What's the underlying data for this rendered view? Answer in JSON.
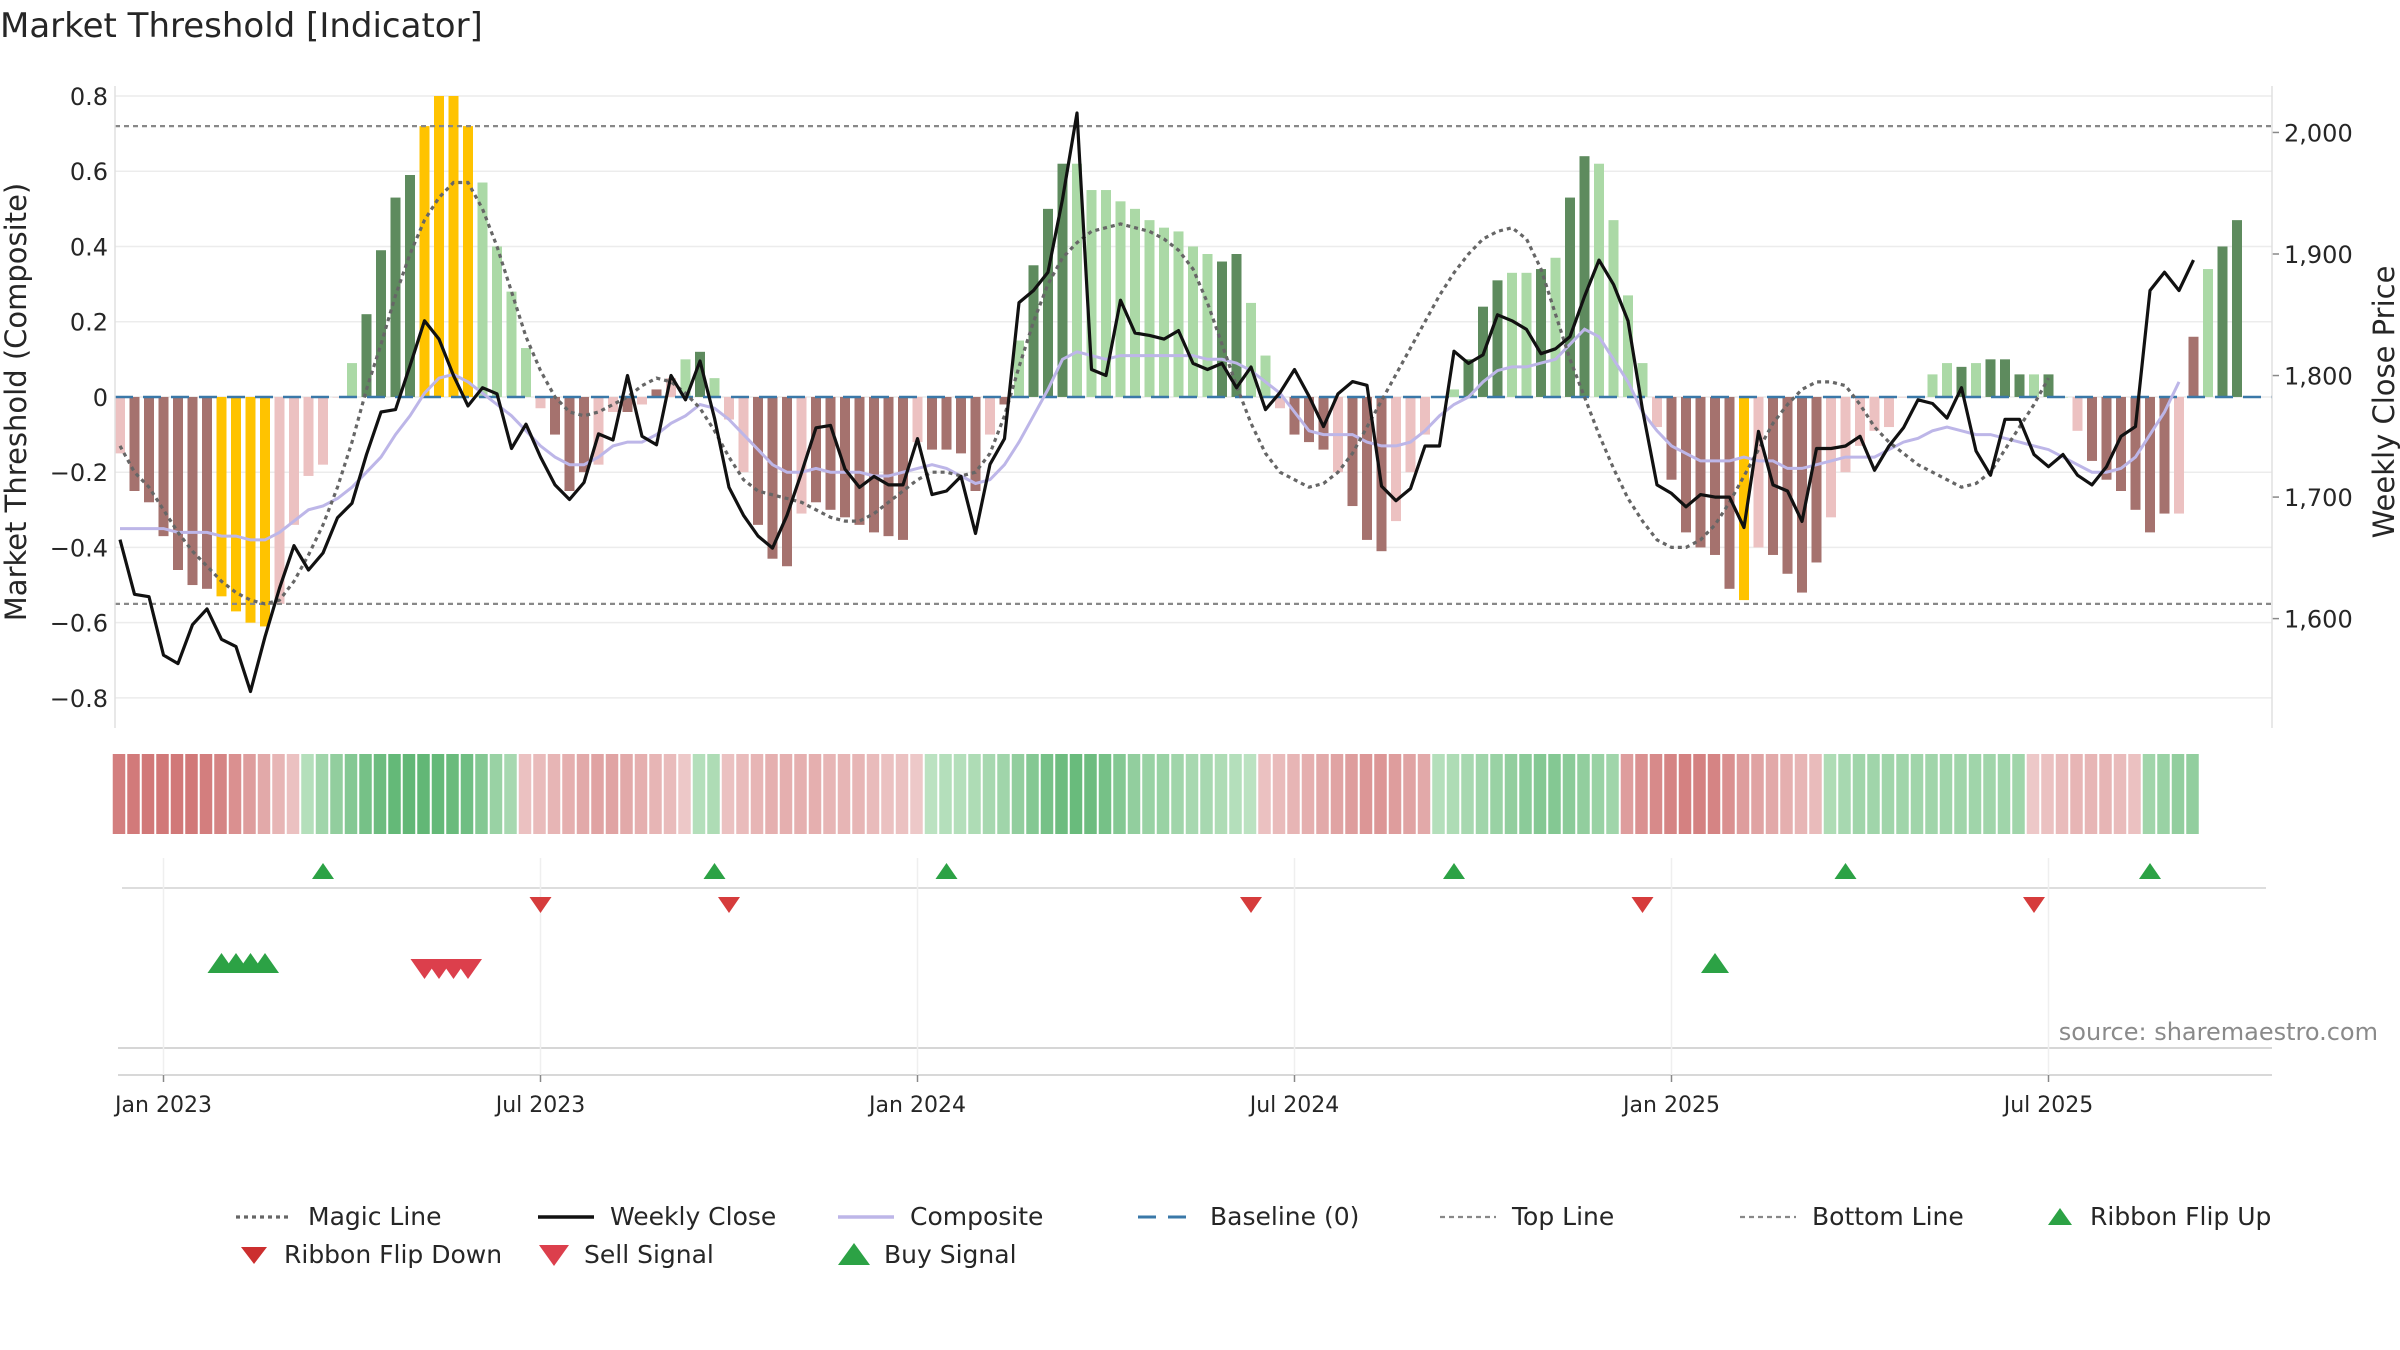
{
  "title": "Market Threshold [Indicator]",
  "source": "source: sharemaestro.com",
  "colors": {
    "strong_green": "#5e8b5e",
    "light_green": "#abd9a6",
    "strong_red": "#a5726e",
    "light_red": "#ecc1c1",
    "gold": "#ffc300",
    "weekly_close": "#111111",
    "composite": "#bdb6e8",
    "magic_line": "#666666",
    "baseline": "#3a78a8",
    "buy": "#2ca245",
    "sell": "#d63c3c"
  },
  "chart_data": {
    "type": "bar",
    "title": "Market Threshold [Indicator]",
    "ylabel": "Market Threshold (Composite)",
    "y2label": "Weekly Close Price",
    "ylim": [
      -0.88,
      0.8
    ],
    "y2lim": [
      1510,
      2030
    ],
    "yticks": [
      {
        "v": 0.8,
        "label": "0.8"
      },
      {
        "v": 0.6,
        "label": "0.6"
      },
      {
        "v": 0.4,
        "label": "0.4"
      },
      {
        "v": 0.2,
        "label": "0.2"
      },
      {
        "v": 0,
        "label": "0"
      },
      {
        "v": -0.2,
        "label": "−0.2"
      },
      {
        "v": -0.4,
        "label": "−0.4"
      },
      {
        "v": -0.6,
        "label": "−0.6"
      },
      {
        "v": -0.8,
        "label": "−0.8"
      }
    ],
    "y2ticks": [
      {
        "v": 2000,
        "label": "2,000"
      },
      {
        "v": 1900,
        "label": "1,900"
      },
      {
        "v": 1800,
        "label": "1,800"
      },
      {
        "v": 1700,
        "label": "1,700"
      },
      {
        "v": 1600,
        "label": "1,600"
      }
    ],
    "xticks": [
      {
        "week": 3,
        "label": "Jan 2023"
      },
      {
        "week": 29,
        "label": "Jul 2023"
      },
      {
        "week": 55,
        "label": "Jan 2024"
      },
      {
        "week": 81,
        "label": "Jul 2024"
      },
      {
        "week": 107,
        "label": "Jan 2025"
      },
      {
        "week": 133,
        "label": "Jul 2025"
      }
    ],
    "top_line": 0.72,
    "bottom_line": -0.55,
    "histogram": [
      -0.15,
      -0.25,
      -0.28,
      -0.37,
      -0.46,
      -0.5,
      -0.51,
      -0.53,
      -0.57,
      -0.6,
      -0.61,
      -0.55,
      -0.34,
      -0.21,
      -0.18,
      0,
      0.09,
      0.22,
      0.39,
      0.53,
      0.59,
      0.72,
      0.8,
      0.8,
      0.72,
      0.57,
      0.4,
      0.28,
      0.13,
      -0.03,
      -0.1,
      -0.25,
      -0.2,
      -0.18,
      -0.04,
      -0.04,
      -0.02,
      0.02,
      0.05,
      0.1,
      0.12,
      0.05,
      -0.06,
      -0.2,
      -0.34,
      -0.43,
      -0.45,
      -0.31,
      -0.28,
      -0.3,
      -0.32,
      -0.34,
      -0.36,
      -0.37,
      -0.38,
      -0.12,
      -0.14,
      -0.14,
      -0.15,
      -0.25,
      -0.1,
      -0.02,
      0.15,
      0.35,
      0.5,
      0.62,
      0.62,
      0.55,
      0.55,
      0.52,
      0.5,
      0.47,
      0.45,
      0.44,
      0.4,
      0.38,
      0.36,
      0.38,
      0.25,
      0.11,
      -0.03,
      -0.1,
      -0.12,
      -0.14,
      -0.2,
      -0.29,
      -0.38,
      -0.41,
      -0.33,
      -0.2,
      -0.1,
      0,
      0.02,
      0.1,
      0.24,
      0.31,
      0.33,
      0.33,
      0.34,
      0.37,
      0.53,
      0.64,
      0.62,
      0.47,
      0.27,
      0.09,
      -0.08,
      -0.22,
      -0.36,
      -0.4,
      -0.42,
      -0.51,
      -0.54,
      -0.4,
      -0.42,
      -0.47,
      -0.52,
      -0.44,
      -0.32,
      -0.2,
      -0.13,
      -0.09,
      -0.08,
      0,
      0,
      0.06,
      0.09,
      0.08,
      0.09,
      0.1,
      0.1,
      0.06,
      0.06,
      0.06,
      0,
      -0.09,
      -0.17,
      -0.22,
      -0.25,
      -0.3,
      -0.36,
      -0.31,
      -0.31,
      0.16,
      0.34,
      0.4,
      0.47
    ],
    "histogram_colors": [
      "lr",
      "sr",
      "sr",
      "sr",
      "sr",
      "sr",
      "sr",
      "g",
      "g",
      "g",
      "g",
      "lr",
      "lr",
      "lr",
      "lr",
      "lr",
      "lg",
      "sg",
      "sg",
      "sg",
      "sg",
      "g",
      "g",
      "g",
      "g",
      "lg",
      "lg",
      "lg",
      "lg",
      "lr",
      "sr",
      "sr",
      "sr",
      "lr",
      "lr",
      "sr",
      "lr",
      "sr",
      "lr",
      "lg",
      "sg",
      "lg",
      "lr",
      "lr",
      "sr",
      "sr",
      "sr",
      "lr",
      "sr",
      "sr",
      "sr",
      "sr",
      "sr",
      "sr",
      "sr",
      "lr",
      "sr",
      "sr",
      "sr",
      "sr",
      "lr",
      "sr",
      "lg",
      "sg",
      "sg",
      "sg",
      "lg",
      "lg",
      "lg",
      "lg",
      "lg",
      "lg",
      "lg",
      "lg",
      "lg",
      "lg",
      "sg",
      "sg",
      "lg",
      "lg",
      "lr",
      "sr",
      "sr",
      "sr",
      "lr",
      "sr",
      "sr",
      "sr",
      "lr",
      "lr",
      "lr",
      "sr",
      "lg",
      "sg",
      "sg",
      "sg",
      "lg",
      "lg",
      "sg",
      "lg",
      "sg",
      "sg",
      "lg",
      "lg",
      "lg",
      "lg",
      "lr",
      "sr",
      "sr",
      "sr",
      "sr",
      "sr",
      "g",
      "lr",
      "sr",
      "sr",
      "sr",
      "sr",
      "lr",
      "lr",
      "lr",
      "lr",
      "lr",
      "lr",
      "lr",
      "lg",
      "lg",
      "sg",
      "lg",
      "sg",
      "sg",
      "sg",
      "lg",
      "sg",
      "lg",
      "lr",
      "sr",
      "sr",
      "sr",
      "sr",
      "sr",
      "sr",
      "lr",
      "sr",
      "lg",
      "sg",
      "sg",
      "sg"
    ],
    "weekly_close": [
      1665,
      1620,
      1618,
      1570,
      1563,
      1595,
      1608,
      1583,
      1577,
      1540,
      1585,
      1625,
      1660,
      1640,
      1654,
      1683,
      1695,
      1735,
      1770,
      1772,
      1808,
      1845,
      1830,
      1800,
      1775,
      1790,
      1785,
      1740,
      1760,
      1733,
      1710,
      1698,
      1712,
      1752,
      1747,
      1800,
      1750,
      1743,
      1800,
      1780,
      1812,
      1765,
      1708,
      1685,
      1668,
      1658,
      1685,
      1720,
      1757,
      1759,
      1723,
      1708,
      1717,
      1710,
      1710,
      1748,
      1702,
      1705,
      1717,
      1670,
      1727,
      1748,
      1860,
      1870,
      1885,
      1945,
      2016,
      1805,
      1800,
      1862,
      1835,
      1833,
      1830,
      1837,
      1810,
      1805,
      1810,
      1790,
      1807,
      1772,
      1786,
      1805,
      1783,
      1758,
      1785,
      1795,
      1792,
      1709,
      1697,
      1707,
      1742,
      1742,
      1820,
      1810,
      1817,
      1850,
      1845,
      1838,
      1818,
      1822,
      1832,
      1865,
      1895,
      1875,
      1845,
      1772,
      1710,
      1703,
      1692,
      1702,
      1700,
      1700,
      1675,
      1754,
      1710,
      1705,
      1680,
      1740,
      1740,
      1742,
      1750,
      1722,
      1742,
      1757,
      1780,
      1777,
      1765,
      1790,
      1738,
      1718,
      1764,
      1764,
      1735,
      1725,
      1735,
      1718,
      1710,
      1725,
      1750,
      1758,
      1870,
      1885,
      1870,
      1895
    ],
    "composite": [
      -0.35,
      -0.35,
      -0.35,
      -0.35,
      -0.36,
      -0.36,
      -0.36,
      -0.37,
      -0.37,
      -0.38,
      -0.38,
      -0.36,
      -0.33,
      -0.3,
      -0.29,
      -0.27,
      -0.24,
      -0.2,
      -0.16,
      -0.1,
      -0.05,
      0.01,
      0.05,
      0.06,
      0.04,
      0.01,
      -0.02,
      -0.05,
      -0.09,
      -0.13,
      -0.16,
      -0.18,
      -0.18,
      -0.16,
      -0.13,
      -0.12,
      -0.12,
      -0.1,
      -0.07,
      -0.05,
      -0.02,
      -0.03,
      -0.06,
      -0.1,
      -0.14,
      -0.18,
      -0.2,
      -0.2,
      -0.19,
      -0.2,
      -0.2,
      -0.2,
      -0.21,
      -0.21,
      -0.2,
      -0.19,
      -0.18,
      -0.19,
      -0.21,
      -0.23,
      -0.22,
      -0.18,
      -0.12,
      -0.05,
      0.02,
      0.1,
      0.12,
      0.11,
      0.1,
      0.11,
      0.11,
      0.11,
      0.11,
      0.11,
      0.11,
      0.1,
      0.1,
      0.09,
      0.07,
      0.04,
      0.01,
      -0.04,
      -0.09,
      -0.1,
      -0.1,
      -0.1,
      -0.12,
      -0.13,
      -0.13,
      -0.12,
      -0.09,
      -0.05,
      -0.02,
      0,
      0.04,
      0.07,
      0.08,
      0.08,
      0.09,
      0.1,
      0.14,
      0.18,
      0.16,
      0.1,
      0.04,
      -0.04,
      -0.09,
      -0.13,
      -0.15,
      -0.17,
      -0.17,
      -0.17,
      -0.16,
      -0.17,
      -0.17,
      -0.19,
      -0.19,
      -0.18,
      -0.17,
      -0.16,
      -0.16,
      -0.16,
      -0.14,
      -0.12,
      -0.11,
      -0.09,
      -0.08,
      -0.09,
      -0.1,
      -0.1,
      -0.11,
      -0.12,
      -0.13,
      -0.14,
      -0.16,
      -0.18,
      -0.2,
      -0.2,
      -0.19,
      -0.16,
      -0.1,
      -0.04,
      0.04
    ],
    "magic_line": [
      -0.13,
      -0.2,
      -0.24,
      -0.3,
      -0.36,
      -0.41,
      -0.45,
      -0.49,
      -0.52,
      -0.54,
      -0.55,
      -0.54,
      -0.49,
      -0.42,
      -0.34,
      -0.24,
      -0.12,
      0.02,
      0.14,
      0.27,
      0.38,
      0.47,
      0.53,
      0.57,
      0.57,
      0.5,
      0.4,
      0.28,
      0.16,
      0.07,
      0,
      -0.04,
      -0.05,
      -0.04,
      -0.02,
      0,
      0.03,
      0.05,
      0.04,
      0.01,
      -0.03,
      -0.09,
      -0.16,
      -0.22,
      -0.25,
      -0.26,
      -0.27,
      -0.28,
      -0.3,
      -0.32,
      -0.33,
      -0.33,
      -0.31,
      -0.28,
      -0.25,
      -0.22,
      -0.2,
      -0.2,
      -0.21,
      -0.2,
      -0.15,
      -0.05,
      0.08,
      0.2,
      0.3,
      0.37,
      0.41,
      0.44,
      0.45,
      0.46,
      0.45,
      0.44,
      0.42,
      0.39,
      0.34,
      0.25,
      0.14,
      0.03,
      -0.07,
      -0.15,
      -0.2,
      -0.22,
      -0.24,
      -0.23,
      -0.2,
      -0.15,
      -0.08,
      -0.01,
      0.06,
      0.13,
      0.2,
      0.27,
      0.33,
      0.38,
      0.42,
      0.44,
      0.45,
      0.42,
      0.34,
      0.22,
      0.1,
      0,
      -0.1,
      -0.19,
      -0.27,
      -0.33,
      -0.38,
      -0.4,
      -0.4,
      -0.38,
      -0.34,
      -0.28,
      -0.21,
      -0.14,
      -0.07,
      -0.02,
      0.02,
      0.04,
      0.04,
      0.03,
      -0.02,
      -0.08,
      -0.12,
      -0.15,
      -0.18,
      -0.2,
      -0.22,
      -0.24,
      -0.23,
      -0.2,
      -0.14,
      -0.08,
      -0.02,
      0.05
    ],
    "ribbon": [
      -0.75,
      -0.78,
      -0.8,
      -0.8,
      -0.8,
      -0.8,
      -0.75,
      -0.7,
      -0.6,
      -0.5,
      -0.4,
      -0.3,
      -0.2,
      0.2,
      0.35,
      0.45,
      0.55,
      0.65,
      0.72,
      0.78,
      0.8,
      0.8,
      0.78,
      0.75,
      0.7,
      0.55,
      0.4,
      0.3,
      -0.2,
      -0.25,
      -0.3,
      -0.35,
      -0.4,
      -0.45,
      -0.45,
      -0.4,
      -0.35,
      -0.3,
      -0.25,
      -0.15,
      0.2,
      0.25,
      -0.2,
      -0.25,
      -0.3,
      -0.35,
      -0.35,
      -0.35,
      -0.35,
      -0.3,
      -0.3,
      -0.3,
      -0.25,
      -0.2,
      -0.2,
      -0.15,
      0.15,
      0.2,
      0.2,
      0.25,
      0.3,
      0.35,
      0.45,
      0.55,
      0.65,
      0.72,
      0.75,
      0.72,
      0.65,
      0.55,
      0.45,
      0.4,
      0.4,
      0.35,
      0.3,
      0.3,
      0.25,
      0.2,
      0.15,
      -0.2,
      -0.25,
      -0.3,
      -0.35,
      -0.4,
      -0.45,
      -0.5,
      -0.55,
      -0.55,
      -0.5,
      -0.45,
      -0.4,
      0.2,
      0.25,
      0.3,
      0.35,
      0.4,
      0.45,
      0.5,
      0.55,
      0.55,
      0.5,
      0.45,
      0.4,
      0.35,
      -0.5,
      -0.6,
      -0.65,
      -0.7,
      -0.72,
      -0.72,
      -0.7,
      -0.6,
      -0.5,
      -0.45,
      -0.4,
      -0.35,
      -0.3,
      -0.25,
      0.25,
      0.3,
      0.35,
      0.35,
      0.35,
      0.35,
      0.35,
      0.35,
      0.35,
      0.35,
      0.35,
      0.35,
      0.35,
      0.35,
      -0.15,
      -0.2,
      -0.25,
      -0.3,
      -0.3,
      -0.3,
      -0.25,
      -0.2,
      0.35,
      0.4,
      0.45,
      0.45
    ],
    "ribbon_flip_up": [
      14,
      41,
      57,
      92,
      119,
      140
    ],
    "ribbon_flip_down": [
      29,
      42,
      78,
      105,
      132
    ],
    "buy_signal": [
      7,
      8,
      9,
      10,
      110
    ],
    "sell_signal": [
      21,
      22,
      23,
      24
    ],
    "legend": [
      {
        "key": "magic",
        "label": "Magic Line"
      },
      {
        "key": "close",
        "label": "Weekly Close"
      },
      {
        "key": "composite",
        "label": "Composite"
      },
      {
        "key": "baseline",
        "label": "Baseline (0)"
      },
      {
        "key": "top",
        "label": "Top Line"
      },
      {
        "key": "bottom",
        "label": "Bottom Line"
      },
      {
        "key": "flipup",
        "label": "Ribbon Flip Up"
      },
      {
        "key": "flipdown",
        "label": "Ribbon Flip Down"
      },
      {
        "key": "sell",
        "label": "Sell Signal"
      },
      {
        "key": "buy",
        "label": "Buy Signal"
      }
    ]
  }
}
